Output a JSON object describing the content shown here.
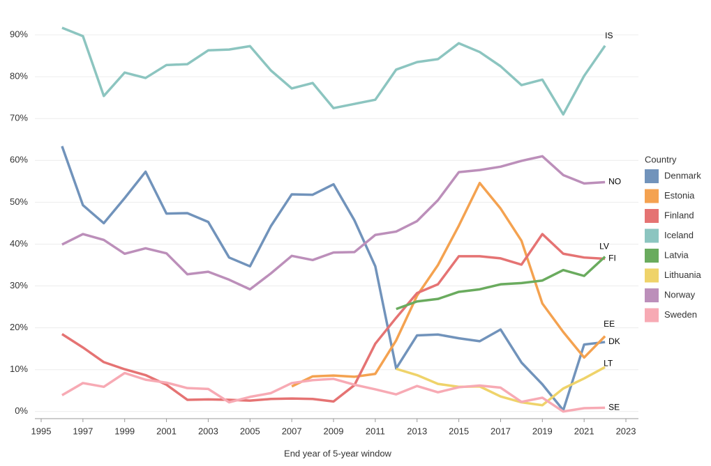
{
  "chart_data": {
    "type": "line",
    "x_label": "End year of 5-year window",
    "legend_title": "Country",
    "legend": "right",
    "grid": true,
    "xlim": [
      1994.7,
      2023.6
    ],
    "xticks": [
      1995,
      1997,
      1999,
      2001,
      2003,
      2005,
      2007,
      2009,
      2011,
      2013,
      2015,
      2017,
      2019,
      2021,
      2023
    ],
    "ylim": [
      -1.7,
      97.5
    ],
    "yticks": [
      {
        "value": 0,
        "label": "0%"
      },
      {
        "value": 10,
        "label": "10%"
      },
      {
        "value": 20,
        "label": "20%"
      },
      {
        "value": 30,
        "label": "30%"
      },
      {
        "value": 40,
        "label": "40%"
      },
      {
        "value": 50,
        "label": "50%"
      },
      {
        "value": 60,
        "label": "60%"
      },
      {
        "value": 70,
        "label": "70%"
      },
      {
        "value": 80,
        "label": "80%"
      },
      {
        "value": 90,
        "label": "90%"
      }
    ],
    "x": [
      1996,
      1997,
      1998,
      1999,
      2000,
      2001,
      2002,
      2003,
      2004,
      2005,
      2006,
      2007,
      2008,
      2009,
      2010,
      2011,
      2012,
      2013,
      2014,
      2015,
      2016,
      2017,
      2018,
      2019,
      2020,
      2021,
      2022
    ],
    "series": [
      {
        "name": "Denmark",
        "label": "DK",
        "color": "#7193bb",
        "values": [
          63.4,
          49.3,
          45,
          51,
          57.3,
          47.3,
          47.4,
          45.3,
          36.8,
          34.7,
          44.3,
          51.9,
          51.8,
          54.3,
          45.7,
          34.7,
          10.3,
          18.2,
          18.4,
          17.5,
          16.8,
          19.6,
          11.7,
          6.5,
          0.3,
          16,
          16.6
        ]
      },
      {
        "name": "Estonia",
        "label": "EE",
        "color": "#f4a250",
        "values": [
          null,
          null,
          null,
          null,
          null,
          null,
          null,
          null,
          null,
          null,
          null,
          6,
          8.4,
          8.6,
          8.3,
          9,
          17,
          27.7,
          35,
          44.4,
          54.6,
          48.5,
          40.8,
          25.8,
          19,
          12.9,
          18
        ]
      },
      {
        "name": "Finland",
        "label": "FI",
        "color": "#e57373",
        "values": [
          18.5,
          15.3,
          11.8,
          10.1,
          8.7,
          6.4,
          2.8,
          2.9,
          2.8,
          2.6,
          3,
          3.1,
          3,
          2.4,
          6.3,
          16.2,
          22.4,
          28.3,
          30.4,
          37.1,
          37.1,
          36.6,
          35.1,
          42.4,
          37.7,
          36.8,
          36.5
        ]
      },
      {
        "name": "Iceland",
        "label": "IS",
        "color": "#8cc5c0",
        "values": [
          91.7,
          89.7,
          75.4,
          81,
          79.7,
          82.8,
          83,
          86.3,
          86.5,
          87.3,
          81.5,
          77.2,
          78.5,
          72.5,
          73.5,
          74.5,
          81.7,
          83.5,
          84.2,
          88,
          85.9,
          82.5,
          78,
          79.3,
          71,
          80.2,
          87.4
        ]
      },
      {
        "name": "Latvia",
        "label": "LV",
        "color": "#6aab5e",
        "values": [
          null,
          null,
          null,
          null,
          null,
          null,
          null,
          null,
          null,
          null,
          null,
          null,
          null,
          null,
          null,
          null,
          24.5,
          26.3,
          26.9,
          28.6,
          29.2,
          30.4,
          30.7,
          31.3,
          33.8,
          32.4,
          37
        ]
      },
      {
        "name": "Lithuania",
        "label": "LT",
        "color": "#efd36a",
        "values": [
          null,
          null,
          null,
          null,
          null,
          null,
          null,
          null,
          null,
          null,
          null,
          null,
          null,
          null,
          null,
          null,
          10.2,
          8.7,
          6.6,
          5.9,
          6,
          3.6,
          2.2,
          1.5,
          5.5,
          7.9,
          10.6
        ]
      },
      {
        "name": "Norway",
        "label": "NO",
        "color": "#bc8fba",
        "values": [
          39.9,
          42.4,
          41,
          37.7,
          39,
          37.8,
          32.8,
          33.4,
          31.5,
          29.2,
          33,
          37.2,
          36.2,
          38,
          38.1,
          42.2,
          43,
          45.5,
          50.5,
          57.2,
          57.7,
          58.5,
          59.9,
          61,
          56.5,
          54.5,
          54.8
        ]
      },
      {
        "name": "Sweden",
        "label": "SE",
        "color": "#f7aab4",
        "values": [
          3.9,
          6.8,
          5.9,
          9.2,
          7.6,
          6.9,
          5.6,
          5.4,
          2.2,
          3.5,
          4.4,
          6.8,
          7.5,
          7.8,
          6.4,
          5.3,
          4.1,
          6.1,
          4.6,
          5.8,
          6.2,
          5.7,
          2.3,
          3.3,
          0,
          0.8,
          0.9
        ]
      }
    ]
  }
}
